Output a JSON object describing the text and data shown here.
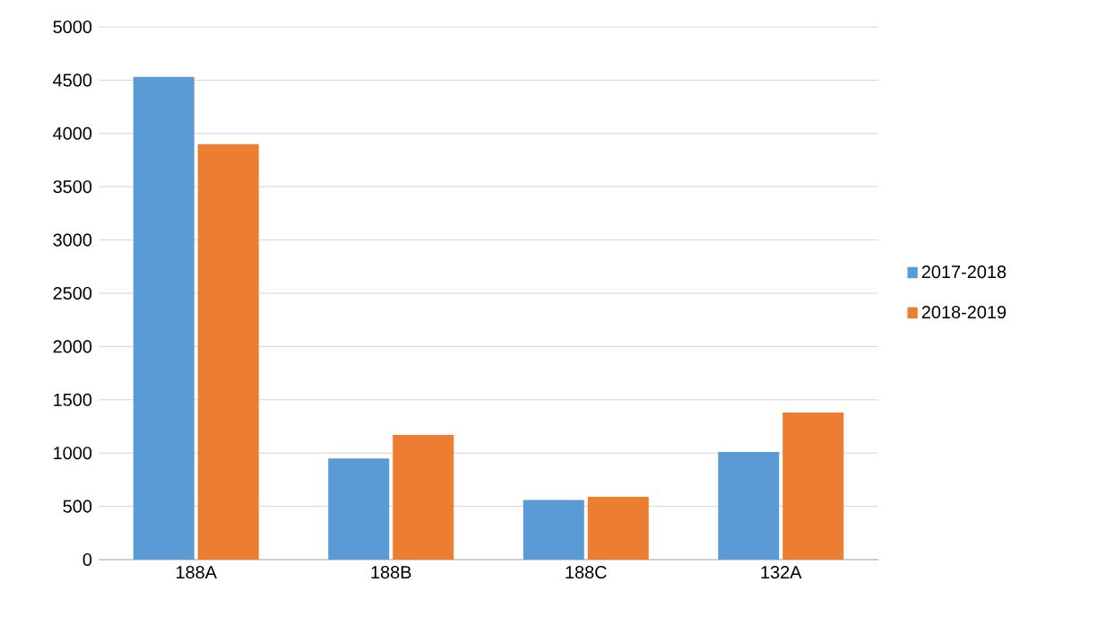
{
  "chart_data": {
    "type": "bar",
    "categories": [
      "188A",
      "188B",
      "188C",
      "132A"
    ],
    "series": [
      {
        "name": "2017-2018",
        "color": "#5b9bd5",
        "values": [
          4530,
          950,
          560,
          1010
        ]
      },
      {
        "name": "2018-2019",
        "color": "#ed7d31",
        "values": [
          3900,
          1170,
          590,
          1380
        ]
      }
    ],
    "ylim": [
      0,
      5000
    ],
    "yticks": [
      0,
      500,
      1000,
      1500,
      2000,
      2500,
      3000,
      3500,
      4000,
      4500,
      5000
    ],
    "grid": "y",
    "legend": "right"
  }
}
